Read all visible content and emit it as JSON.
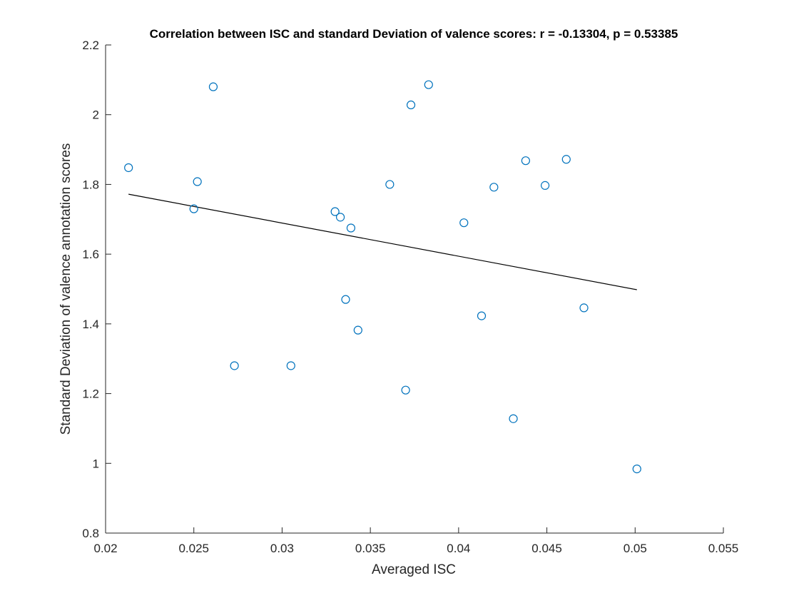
{
  "chart_data": {
    "type": "scatter",
    "title": "Correlation between ISC and standard Deviation of valence scores: r = -0.13304, p = 0.53385",
    "xlabel": "Averaged ISC",
    "ylabel": "Standard Deviation of valence annotation scores",
    "xlim": [
      0.02,
      0.055
    ],
    "ylim": [
      0.8,
      2.2
    ],
    "xticks": [
      0.02,
      0.025,
      0.03,
      0.035,
      0.04,
      0.045,
      0.05,
      0.055
    ],
    "xtick_labels": [
      "0.02",
      "0.025",
      "0.03",
      "0.035",
      "0.04",
      "0.045",
      "0.05",
      "0.055"
    ],
    "yticks": [
      0.8,
      1.0,
      1.2,
      1.4,
      1.6,
      1.8,
      2.0,
      2.2
    ],
    "ytick_labels": [
      "0.8",
      "1",
      "1.2",
      "1.4",
      "1.6",
      "1.8",
      "2",
      "2.2"
    ],
    "grid": false,
    "colors": {
      "points": "#0072BD",
      "fit_line": "#000000",
      "axes": "#262626"
    },
    "points": [
      {
        "x": 0.0213,
        "y": 1.848
      },
      {
        "x": 0.025,
        "y": 1.73
      },
      {
        "x": 0.0252,
        "y": 1.808
      },
      {
        "x": 0.0261,
        "y": 2.08
      },
      {
        "x": 0.0273,
        "y": 1.28
      },
      {
        "x": 0.0305,
        "y": 1.28
      },
      {
        "x": 0.033,
        "y": 1.722
      },
      {
        "x": 0.0333,
        "y": 1.706
      },
      {
        "x": 0.0336,
        "y": 1.47
      },
      {
        "x": 0.0339,
        "y": 1.675
      },
      {
        "x": 0.0343,
        "y": 1.382
      },
      {
        "x": 0.0361,
        "y": 1.8
      },
      {
        "x": 0.037,
        "y": 1.21
      },
      {
        "x": 0.0373,
        "y": 2.028
      },
      {
        "x": 0.0383,
        "y": 2.086
      },
      {
        "x": 0.0403,
        "y": 1.69
      },
      {
        "x": 0.0413,
        "y": 1.423
      },
      {
        "x": 0.042,
        "y": 1.792
      },
      {
        "x": 0.0431,
        "y": 1.128
      },
      {
        "x": 0.0438,
        "y": 1.868
      },
      {
        "x": 0.0449,
        "y": 1.797
      },
      {
        "x": 0.0461,
        "y": 1.872
      },
      {
        "x": 0.0471,
        "y": 1.446
      },
      {
        "x": 0.0501,
        "y": 0.984
      }
    ],
    "fit_line": {
      "x": [
        0.0213,
        0.0501
      ],
      "y": [
        1.772,
        1.498
      ]
    }
  }
}
